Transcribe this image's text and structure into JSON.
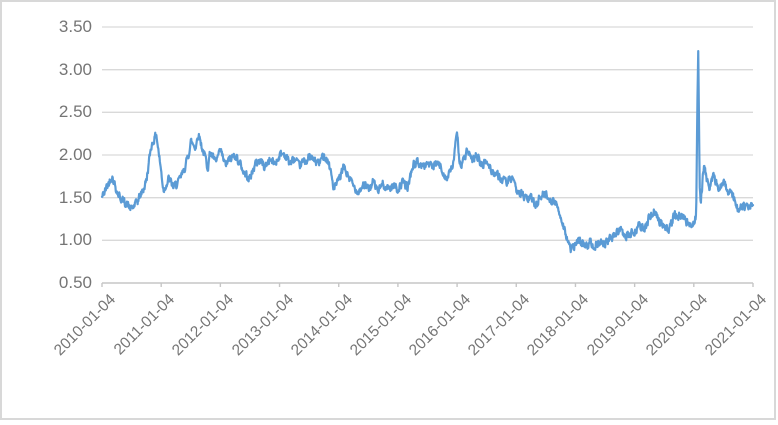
{
  "chart_data": {
    "type": "line",
    "title": "",
    "xlabel": "",
    "ylabel": "",
    "legend": "none",
    "grid": "horizontal",
    "ylim": [
      0.5,
      3.5
    ],
    "y_tick_labels": [
      "3.50",
      "3.00",
      "2.50",
      "2.00",
      "1.50",
      "1.00",
      "0.50"
    ],
    "y_tick_values": [
      3.5,
      3.0,
      2.5,
      2.0,
      1.5,
      1.0,
      0.5
    ],
    "x_tick_labels": [
      "2010-01-04",
      "2011-01-04",
      "2012-01-04",
      "2013-01-04",
      "2014-01-04",
      "2015-01-04",
      "2016-01-04",
      "2017-01-04",
      "2018-01-04",
      "2019-01-04",
      "2020-01-04",
      "2021-01-04"
    ],
    "x_range_years": [
      2010,
      2021
    ],
    "colors": {
      "line": "#5B9BD5",
      "gridline": "#D9D9D9",
      "axis": "#C6C6C6",
      "tick_label": "#757575",
      "card_border": "#D8D8D8",
      "background": "#FFFFFF"
    },
    "series": [
      {
        "name": "",
        "anchor_points_year_value": [
          [
            2010.0,
            1.5
          ],
          [
            2010.08,
            1.62
          ],
          [
            2010.17,
            1.76
          ],
          [
            2010.25,
            1.58
          ],
          [
            2010.33,
            1.48
          ],
          [
            2010.42,
            1.42
          ],
          [
            2010.5,
            1.36
          ],
          [
            2010.58,
            1.44
          ],
          [
            2010.67,
            1.55
          ],
          [
            2010.75,
            1.7
          ],
          [
            2010.83,
            2.1
          ],
          [
            2010.92,
            2.25
          ],
          [
            2011.0,
            1.8
          ],
          [
            2011.04,
            1.6
          ],
          [
            2011.13,
            1.72
          ],
          [
            2011.21,
            1.62
          ],
          [
            2011.29,
            1.68
          ],
          [
            2011.38,
            1.8
          ],
          [
            2011.46,
            2.0
          ],
          [
            2011.5,
            2.15
          ],
          [
            2011.58,
            2.1
          ],
          [
            2011.63,
            2.25
          ],
          [
            2011.71,
            2.05
          ],
          [
            2011.79,
            1.85
          ],
          [
            2011.83,
            2.05
          ],
          [
            2011.92,
            1.9
          ],
          [
            2012.0,
            2.05
          ],
          [
            2012.08,
            1.88
          ],
          [
            2012.17,
            1.95
          ],
          [
            2012.25,
            2.0
          ],
          [
            2012.33,
            1.9
          ],
          [
            2012.42,
            1.78
          ],
          [
            2012.5,
            1.72
          ],
          [
            2012.58,
            1.88
          ],
          [
            2012.67,
            1.95
          ],
          [
            2012.75,
            1.86
          ],
          [
            2012.83,
            1.95
          ],
          [
            2012.92,
            1.9
          ],
          [
            2013.0,
            2.0
          ],
          [
            2013.08,
            2.02
          ],
          [
            2013.17,
            1.9
          ],
          [
            2013.25,
            1.95
          ],
          [
            2013.33,
            1.88
          ],
          [
            2013.42,
            1.92
          ],
          [
            2013.5,
            1.97
          ],
          [
            2013.58,
            1.93
          ],
          [
            2013.67,
            1.9
          ],
          [
            2013.75,
            2.0
          ],
          [
            2013.83,
            1.92
          ],
          [
            2013.92,
            1.6
          ],
          [
            2014.0,
            1.7
          ],
          [
            2014.08,
            1.85
          ],
          [
            2014.17,
            1.75
          ],
          [
            2014.25,
            1.62
          ],
          [
            2014.33,
            1.58
          ],
          [
            2014.42,
            1.66
          ],
          [
            2014.5,
            1.6
          ],
          [
            2014.58,
            1.68
          ],
          [
            2014.67,
            1.58
          ],
          [
            2014.75,
            1.66
          ],
          [
            2014.83,
            1.6
          ],
          [
            2014.92,
            1.65
          ],
          [
            2015.0,
            1.6
          ],
          [
            2015.08,
            1.68
          ],
          [
            2015.17,
            1.62
          ],
          [
            2015.25,
            1.88
          ],
          [
            2015.33,
            1.92
          ],
          [
            2015.42,
            1.86
          ],
          [
            2015.5,
            1.92
          ],
          [
            2015.58,
            1.85
          ],
          [
            2015.67,
            1.9
          ],
          [
            2015.75,
            1.82
          ],
          [
            2015.83,
            1.72
          ],
          [
            2015.92,
            1.85
          ],
          [
            2016.0,
            2.25
          ],
          [
            2016.04,
            1.95
          ],
          [
            2016.08,
            1.88
          ],
          [
            2016.17,
            2.05
          ],
          [
            2016.25,
            1.92
          ],
          [
            2016.33,
            2.0
          ],
          [
            2016.42,
            1.88
          ],
          [
            2016.5,
            1.92
          ],
          [
            2016.58,
            1.82
          ],
          [
            2016.67,
            1.78
          ],
          [
            2016.75,
            1.72
          ],
          [
            2016.83,
            1.68
          ],
          [
            2016.92,
            1.72
          ],
          [
            2017.0,
            1.6
          ],
          [
            2017.08,
            1.55
          ],
          [
            2017.17,
            1.48
          ],
          [
            2017.25,
            1.5
          ],
          [
            2017.33,
            1.42
          ],
          [
            2017.42,
            1.52
          ],
          [
            2017.5,
            1.55
          ],
          [
            2017.58,
            1.48
          ],
          [
            2017.67,
            1.42
          ],
          [
            2017.75,
            1.3
          ],
          [
            2017.83,
            1.1
          ],
          [
            2017.92,
            0.88
          ],
          [
            2018.0,
            0.95
          ],
          [
            2018.08,
            1.0
          ],
          [
            2018.17,
            0.92
          ],
          [
            2018.25,
            0.98
          ],
          [
            2018.33,
            0.93
          ],
          [
            2018.42,
            1.0
          ],
          [
            2018.5,
            0.96
          ],
          [
            2018.58,
            1.02
          ],
          [
            2018.67,
            1.05
          ],
          [
            2018.75,
            1.15
          ],
          [
            2018.83,
            1.02
          ],
          [
            2018.92,
            1.08
          ],
          [
            2019.0,
            1.1
          ],
          [
            2019.08,
            1.18
          ],
          [
            2019.17,
            1.12
          ],
          [
            2019.25,
            1.28
          ],
          [
            2019.33,
            1.35
          ],
          [
            2019.42,
            1.22
          ],
          [
            2019.5,
            1.18
          ],
          [
            2019.58,
            1.12
          ],
          [
            2019.67,
            1.3
          ],
          [
            2019.75,
            1.28
          ],
          [
            2019.83,
            1.25
          ],
          [
            2019.92,
            1.18
          ],
          [
            2020.0,
            1.22
          ],
          [
            2020.04,
            1.3
          ],
          [
            2020.06,
            2.6
          ],
          [
            2020.075,
            3.22
          ],
          [
            2020.09,
            2.2
          ],
          [
            2020.1,
            1.6
          ],
          [
            2020.12,
            1.45
          ],
          [
            2020.17,
            1.9
          ],
          [
            2020.25,
            1.6
          ],
          [
            2020.33,
            1.75
          ],
          [
            2020.42,
            1.62
          ],
          [
            2020.5,
            1.7
          ],
          [
            2020.58,
            1.58
          ],
          [
            2020.67,
            1.5
          ],
          [
            2020.75,
            1.35
          ],
          [
            2020.83,
            1.4
          ],
          [
            2020.92,
            1.38
          ],
          [
            2021.0,
            1.45
          ]
        ]
      }
    ]
  }
}
